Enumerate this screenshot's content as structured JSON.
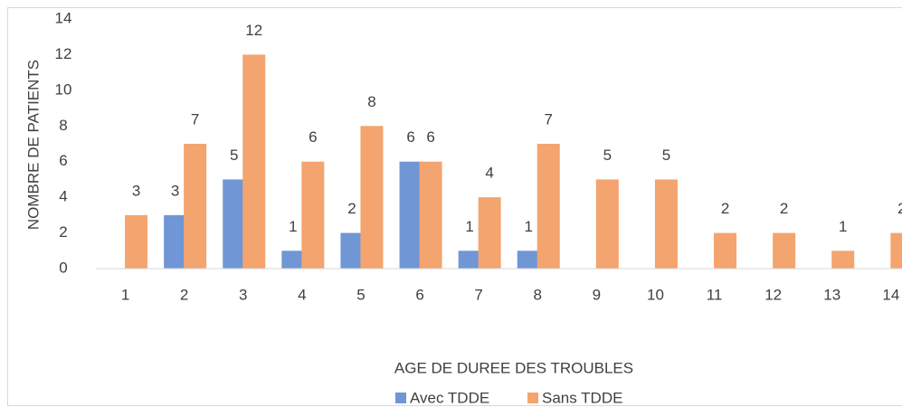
{
  "chart_data": {
    "type": "bar",
    "x_label": "AGE DE DUREE DES TROUBLES",
    "y_label": "NOMBRE DE PATIENTS",
    "categories": [
      "1",
      "2",
      "3",
      "4",
      "5",
      "6",
      "7",
      "8",
      "9",
      "10",
      "11",
      "12",
      "13",
      "14"
    ],
    "series": [
      {
        "name": "Avec TDDE",
        "color": "#7096d6",
        "values": [
          null,
          3,
          5,
          1,
          2,
          6,
          1,
          1,
          null,
          null,
          null,
          null,
          null,
          null
        ]
      },
      {
        "name": "Sans TDDE",
        "color": "#f4a46e",
        "values": [
          3,
          7,
          12,
          6,
          8,
          6,
          4,
          7,
          5,
          5,
          2,
          2,
          1,
          2
        ]
      }
    ],
    "ylim": [
      0,
      14
    ],
    "yticks": [
      0,
      2,
      4,
      6,
      8,
      10,
      12,
      14
    ],
    "grid": false,
    "legend": "bottom"
  }
}
